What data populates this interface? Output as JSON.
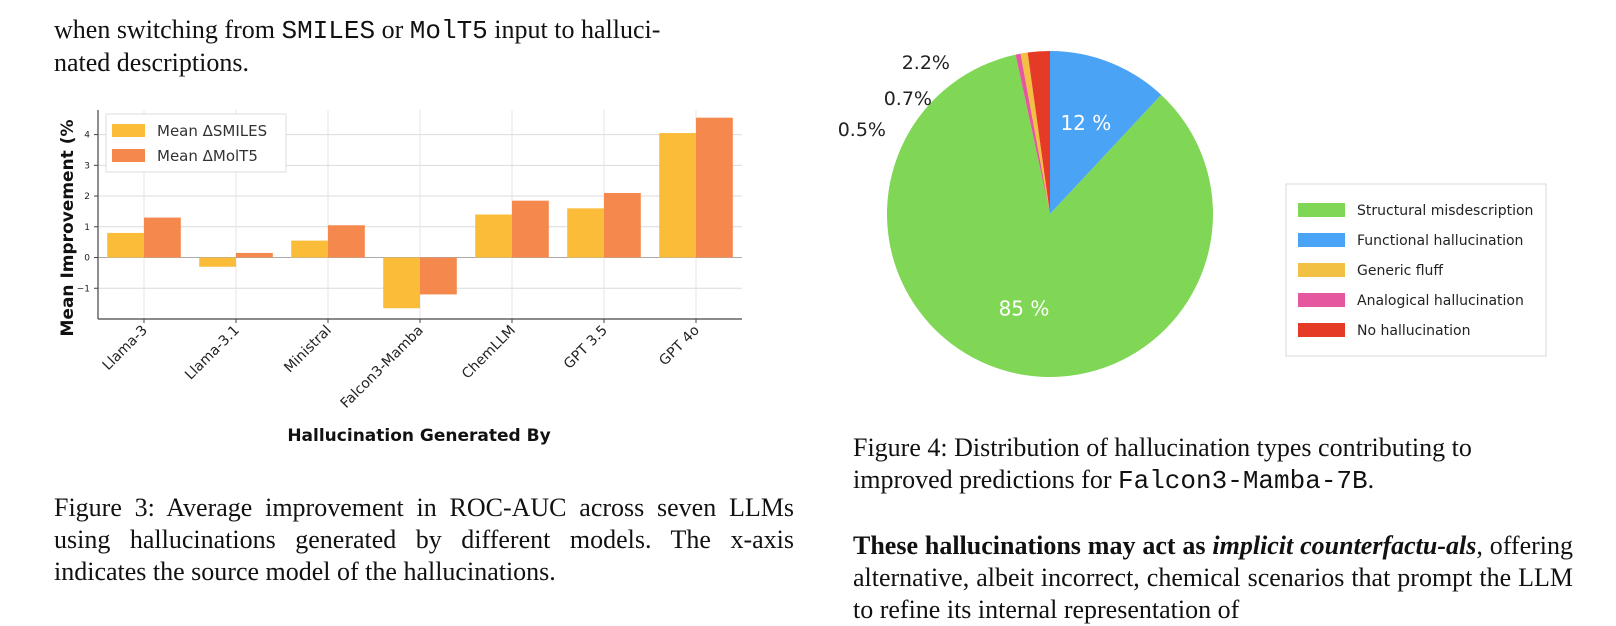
{
  "left_text": {
    "line1_visible": "when switching from",
    "code1": "SMILES",
    "or": "or",
    "code2": "MolT5",
    "line1_rest": "input to halluci-",
    "line2": "nated descriptions."
  },
  "figure3": {
    "caption": "Figure 3: Average improvement in ROC-AUC across seven LLMs using hallucinations generated by different models. The x-axis indicates the source model of the hallucinations."
  },
  "figure4": {
    "caption_prefix": "Figure 4: Distribution of hallucination types contributing to improved predictions for",
    "caption_code": "Falcon3-Mamba-7B",
    "caption_suffix": "."
  },
  "right_text": {
    "lead": "These hallucinations may act as",
    "emph": "implicit counterfactu-als",
    "rest": ", offering alternative, albeit incorrect, chemical scenarios that prompt the LLM to refine its internal representation of"
  },
  "chart_data": [
    {
      "type": "bar",
      "xlabel": "Hallucination Generated By",
      "ylabel": "Mean Improvement (%",
      "categories": [
        "Llama-3",
        "Llama-3.1",
        "Ministral",
        "Falcon3-Mamba",
        "ChemLLM",
        "GPT 3.5",
        "GPT 4o"
      ],
      "series": [
        {
          "name": "Mean ΔSMILES",
          "color": "#fbbc3a",
          "values": [
            0.8,
            -0.3,
            0.55,
            -1.65,
            1.4,
            1.6,
            4.05
          ]
        },
        {
          "name": "Mean ΔMolT5",
          "color": "#f4884d",
          "values": [
            1.3,
            0.15,
            1.05,
            -1.2,
            1.85,
            2.1,
            4.55
          ]
        }
      ],
      "yticks": [
        "−1",
        "0",
        "1",
        "2",
        "3",
        "4"
      ],
      "ytick_values": [
        -1,
        0,
        1,
        2,
        3,
        4
      ],
      "ylim": [
        -2,
        4.8
      ],
      "grid": true,
      "legend": "top-left"
    },
    {
      "type": "pie",
      "slices": [
        {
          "name": "Functional hallucination",
          "value": 12,
          "color": "#4aa3f5",
          "label": "12 %"
        },
        {
          "name": "Structural misdescription",
          "value": 85,
          "color": "#80d655",
          "label": "85 %"
        },
        {
          "name": "Analogical hallucination",
          "value": 0.5,
          "color": "#e5589f",
          "label": "0.5%"
        },
        {
          "name": "Generic fluff",
          "value": 0.7,
          "color": "#f2c043",
          "label": "0.7%"
        },
        {
          "name": "No hallucination",
          "value": 2.2,
          "color": "#e53a25",
          "label": "2.2%"
        }
      ],
      "legend_order": [
        "Structural misdescription",
        "Functional hallucination",
        "Generic fluff",
        "Analogical hallucination",
        "No hallucination"
      ],
      "legend": "right"
    }
  ]
}
